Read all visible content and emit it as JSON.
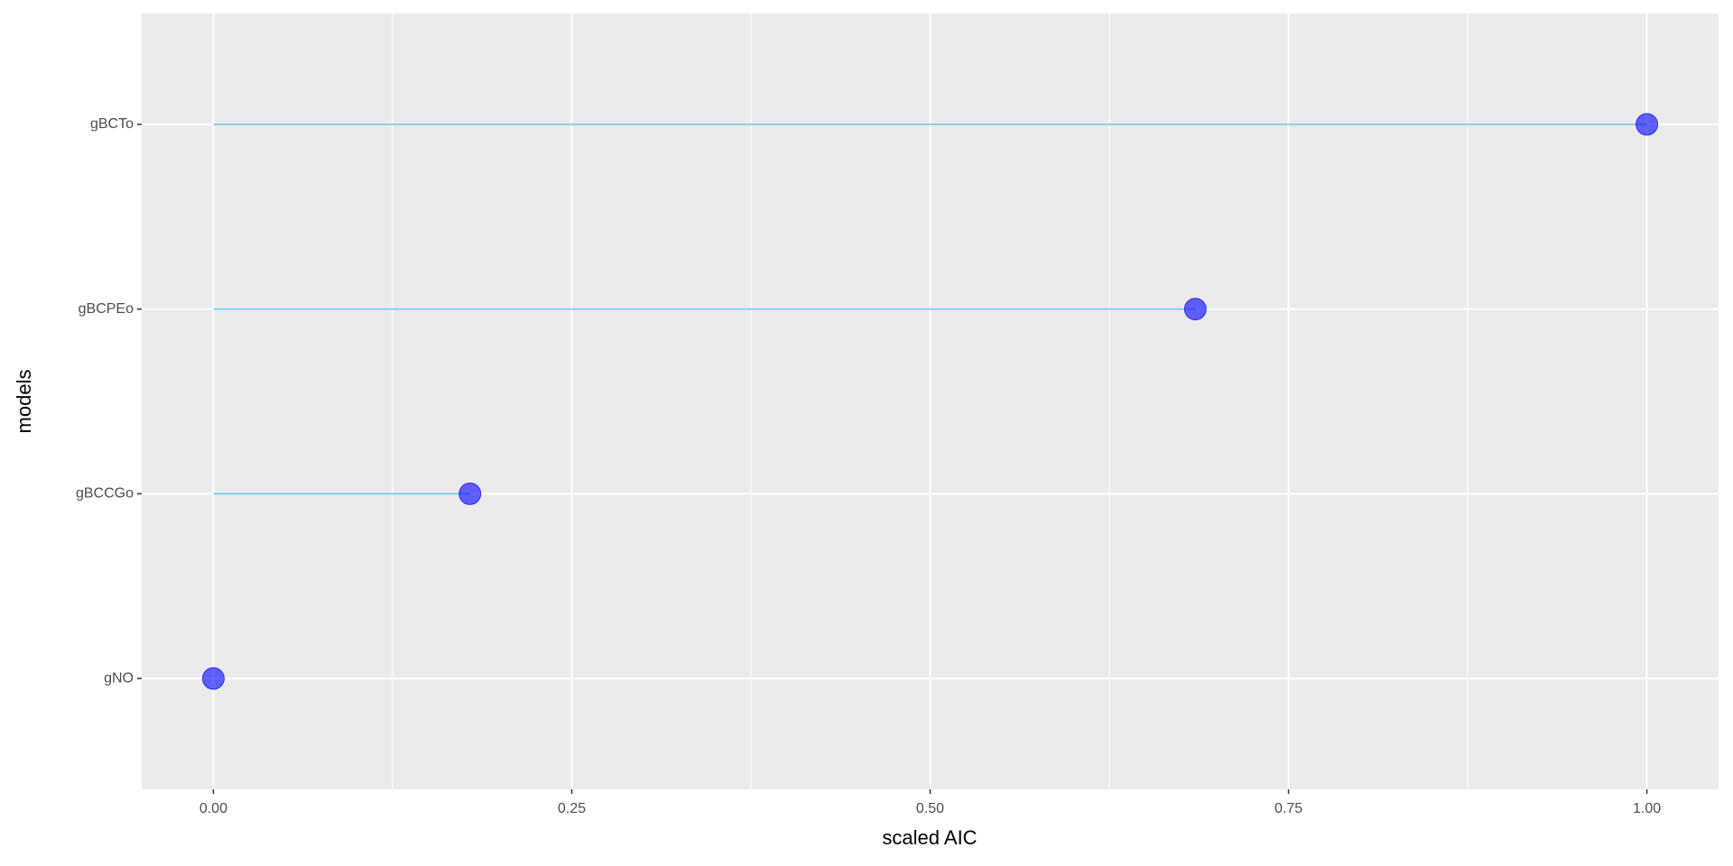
{
  "chart_data": {
    "type": "lollipop",
    "orientation": "horizontal",
    "x_label": "scaled AIC",
    "y_label": "models",
    "categories": [
      "gNO",
      "gBCCGo",
      "gBCPEo",
      "gBCTo"
    ],
    "values": [
      0,
      0.179,
      0.685,
      1.0
    ],
    "color": "#0000ff",
    "segment_color": "#87ceeb",
    "xlim": [
      -0.05,
      1.05
    ],
    "xticks": [
      {
        "value": 0,
        "label": "0.00"
      },
      {
        "value": 0.25,
        "label": "0.25"
      },
      {
        "value": 0.5,
        "label": "0.50"
      },
      {
        "value": 0.75,
        "label": "0.75"
      },
      {
        "value": 1,
        "label": "1.00"
      }
    ],
    "grid": true
  }
}
